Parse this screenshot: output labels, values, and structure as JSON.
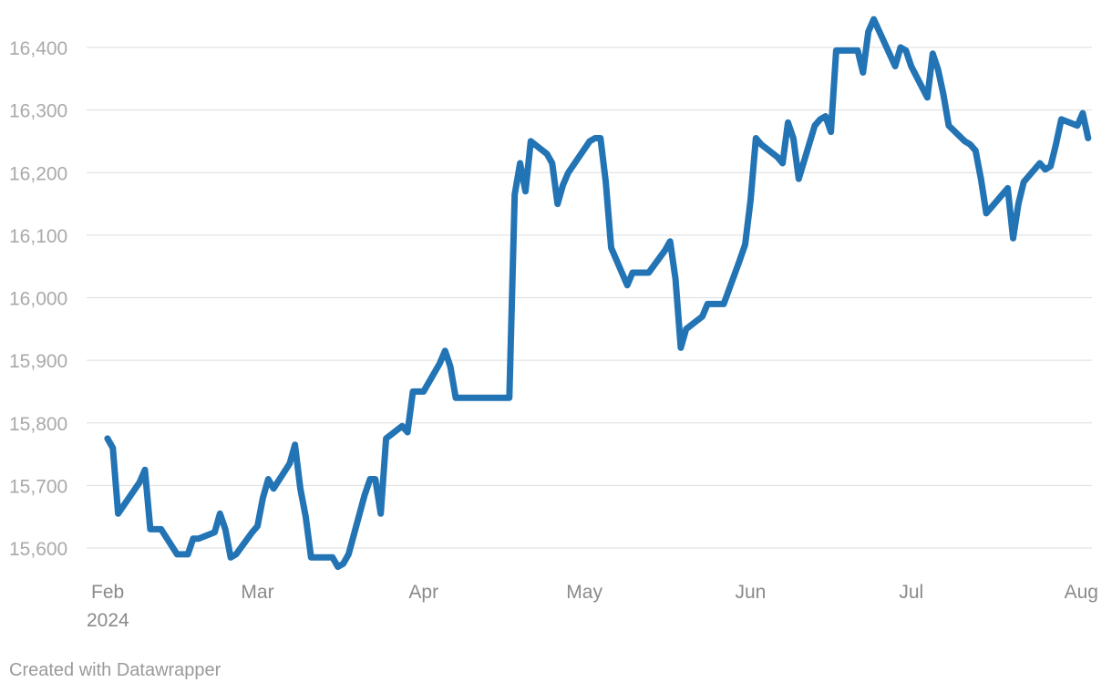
{
  "chart_data": {
    "type": "line",
    "title": "",
    "xlabel": "",
    "ylabel": "",
    "ylim": [
      15560,
      16445
    ],
    "xlim": [
      "2024-02-01",
      "2024-08-01"
    ],
    "grid": true,
    "y_ticks": [
      {
        "value": 15600,
        "label": "15,600"
      },
      {
        "value": 15700,
        "label": "15,700"
      },
      {
        "value": 15800,
        "label": "15,800"
      },
      {
        "value": 15900,
        "label": "15,900"
      },
      {
        "value": 16000,
        "label": "16,000"
      },
      {
        "value": 16100,
        "label": "16,100"
      },
      {
        "value": 16200,
        "label": "16,200"
      },
      {
        "value": 16300,
        "label": "16,300"
      },
      {
        "value": 16400,
        "label": "16,400"
      }
    ],
    "x_ticks": [
      {
        "date": "2024-02-01",
        "label": "Feb",
        "sublabel": "2024"
      },
      {
        "date": "2024-03-01",
        "label": "Mar"
      },
      {
        "date": "2024-04-01",
        "label": "Apr"
      },
      {
        "date": "2024-05-01",
        "label": "May"
      },
      {
        "date": "2024-06-01",
        "label": "Jun"
      },
      {
        "date": "2024-07-01",
        "label": "Jul"
      },
      {
        "date": "2024-08-01",
        "label": "Aug"
      }
    ],
    "series": [
      {
        "color": "#2274b5",
        "points": [
          [
            "2024-02-02",
            15775
          ],
          [
            "2024-02-03",
            15760
          ],
          [
            "2024-02-04",
            15655
          ],
          [
            "2024-02-08",
            15705
          ],
          [
            "2024-02-09",
            15725
          ],
          [
            "2024-02-10",
            15630
          ],
          [
            "2024-02-12",
            15630
          ],
          [
            "2024-02-15",
            15590
          ],
          [
            "2024-02-17",
            15590
          ],
          [
            "2024-02-18",
            15615
          ],
          [
            "2024-02-19",
            15615
          ],
          [
            "2024-02-22",
            15625
          ],
          [
            "2024-02-23",
            15655
          ],
          [
            "2024-02-24",
            15630
          ],
          [
            "2024-02-25",
            15585
          ],
          [
            "2024-02-26",
            15590
          ],
          [
            "2024-02-29",
            15625
          ],
          [
            "2024-03-01",
            15635
          ],
          [
            "2024-03-02",
            15680
          ],
          [
            "2024-03-03",
            15710
          ],
          [
            "2024-03-04",
            15695
          ],
          [
            "2024-03-07",
            15735
          ],
          [
            "2024-03-08",
            15765
          ],
          [
            "2024-03-09",
            15695
          ],
          [
            "2024-03-10",
            15650
          ],
          [
            "2024-03-11",
            15585
          ],
          [
            "2024-03-15",
            15585
          ],
          [
            "2024-03-16",
            15570
          ],
          [
            "2024-03-17",
            15575
          ],
          [
            "2024-03-18",
            15590
          ],
          [
            "2024-03-21",
            15685
          ],
          [
            "2024-03-22",
            15710
          ],
          [
            "2024-03-23",
            15710
          ],
          [
            "2024-03-24",
            15655
          ],
          [
            "2024-03-25",
            15775
          ],
          [
            "2024-03-28",
            15795
          ],
          [
            "2024-03-29",
            15785
          ],
          [
            "2024-03-30",
            15850
          ],
          [
            "2024-04-01",
            15850
          ],
          [
            "2024-04-04",
            15895
          ],
          [
            "2024-04-05",
            15915
          ],
          [
            "2024-04-06",
            15890
          ],
          [
            "2024-04-07",
            15840
          ],
          [
            "2024-04-17",
            15840
          ],
          [
            "2024-04-18",
            16165
          ],
          [
            "2024-04-19",
            16215
          ],
          [
            "2024-04-20",
            16170
          ],
          [
            "2024-04-21",
            16250
          ],
          [
            "2024-04-24",
            16230
          ],
          [
            "2024-04-25",
            16215
          ],
          [
            "2024-04-26",
            16150
          ],
          [
            "2024-04-27",
            16180
          ],
          [
            "2024-04-28",
            16200
          ],
          [
            "2024-05-02",
            16250
          ],
          [
            "2024-05-03",
            16255
          ],
          [
            "2024-05-04",
            16255
          ],
          [
            "2024-05-05",
            16185
          ],
          [
            "2024-05-06",
            16080
          ],
          [
            "2024-05-09",
            16020
          ],
          [
            "2024-05-10",
            16040
          ],
          [
            "2024-05-13",
            16040
          ],
          [
            "2024-05-16",
            16075
          ],
          [
            "2024-05-17",
            16090
          ],
          [
            "2024-05-18",
            16030
          ],
          [
            "2024-05-19",
            15920
          ],
          [
            "2024-05-20",
            15950
          ],
          [
            "2024-05-23",
            15970
          ],
          [
            "2024-05-24",
            15990
          ],
          [
            "2024-05-27",
            15990
          ],
          [
            "2024-05-30",
            16060
          ],
          [
            "2024-05-31",
            16085
          ],
          [
            "2024-06-01",
            16155
          ],
          [
            "2024-06-02",
            16255
          ],
          [
            "2024-06-03",
            16245
          ],
          [
            "2024-06-06",
            16225
          ],
          [
            "2024-06-07",
            16215
          ],
          [
            "2024-06-08",
            16280
          ],
          [
            "2024-06-09",
            16255
          ],
          [
            "2024-06-10",
            16190
          ],
          [
            "2024-06-13",
            16275
          ],
          [
            "2024-06-14",
            16285
          ],
          [
            "2024-06-15",
            16290
          ],
          [
            "2024-06-16",
            16265
          ],
          [
            "2024-06-17",
            16395
          ],
          [
            "2024-06-21",
            16395
          ],
          [
            "2024-06-22",
            16360
          ],
          [
            "2024-06-23",
            16425
          ],
          [
            "2024-06-24",
            16445
          ],
          [
            "2024-06-28",
            16370
          ],
          [
            "2024-06-29",
            16400
          ],
          [
            "2024-06-30",
            16395
          ],
          [
            "2024-07-01",
            16370
          ],
          [
            "2024-07-04",
            16320
          ],
          [
            "2024-07-05",
            16390
          ],
          [
            "2024-07-06",
            16365
          ],
          [
            "2024-07-07",
            16325
          ],
          [
            "2024-07-08",
            16275
          ],
          [
            "2024-07-11",
            16250
          ],
          [
            "2024-07-12",
            16245
          ],
          [
            "2024-07-13",
            16235
          ],
          [
            "2024-07-14",
            16190
          ],
          [
            "2024-07-15",
            16135
          ],
          [
            "2024-07-18",
            16165
          ],
          [
            "2024-07-19",
            16175
          ],
          [
            "2024-07-20",
            16095
          ],
          [
            "2024-07-21",
            16150
          ],
          [
            "2024-07-22",
            16185
          ],
          [
            "2024-07-25",
            16215
          ],
          [
            "2024-07-26",
            16205
          ],
          [
            "2024-07-27",
            16210
          ],
          [
            "2024-07-28",
            16245
          ],
          [
            "2024-07-29",
            16285
          ],
          [
            "2024-08-01",
            16275
          ],
          [
            "2024-08-02",
            16295
          ],
          [
            "2024-08-03",
            16255
          ]
        ]
      }
    ]
  },
  "footer": {
    "credit": "Created with Datawrapper"
  }
}
